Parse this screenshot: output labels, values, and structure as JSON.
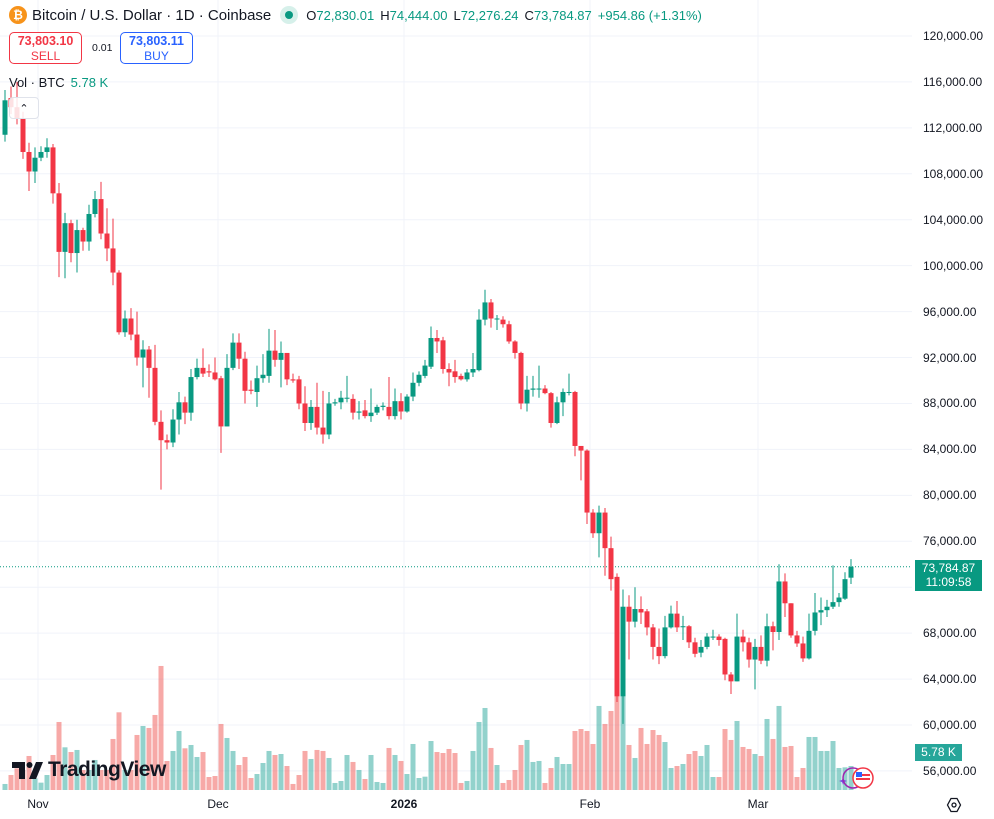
{
  "header": {
    "symbol_icon": "bitcoin-icon",
    "title": "Bitcoin / U.S. Dollar · 1D · Coinbase",
    "open_label": "O",
    "open": "72,830.01",
    "high_label": "H",
    "high": "74,444.00",
    "low_label": "L",
    "low": "72,276.24",
    "close_label": "C",
    "close": "73,784.87",
    "change": "+954.86 (+1.31%)"
  },
  "trade": {
    "sell_price": "73,803.10",
    "sell_label": "SELL",
    "spread": "0.01",
    "buy_price": "73,803.11",
    "buy_label": "BUY"
  },
  "volume_legend": {
    "label": "Vol · BTC",
    "value": "5.78 K"
  },
  "price_tag": {
    "price": "73,784.87",
    "countdown": "11:09:58"
  },
  "volume_tag": "5.78 K",
  "logo": "TradingView",
  "colors": {
    "up": "#089981",
    "down": "#F23645",
    "up_volume": "#26a69a",
    "down_volume": "#ef5350",
    "grid": "#f0f3fa",
    "bitcoin": "#f7931a"
  },
  "chart_data": {
    "type": "candlestick",
    "title": "Bitcoin / U.S. Dollar · 1D · Coinbase",
    "ylim": [
      54000,
      122000
    ],
    "y_ticks": [
      {
        "value": 120000,
        "label": "120,000.00"
      },
      {
        "value": 116000,
        "label": "116,000.00"
      },
      {
        "value": 112000,
        "label": "112,000.00"
      },
      {
        "value": 108000,
        "label": "108,000.00"
      },
      {
        "value": 104000,
        "label": "104,000.00"
      },
      {
        "value": 100000,
        "label": "100,000.00"
      },
      {
        "value": 96000,
        "label": "96,000.00"
      },
      {
        "value": 92000,
        "label": "92,000.00"
      },
      {
        "value": 88000,
        "label": "88,000.00"
      },
      {
        "value": 84000,
        "label": "84,000.00"
      },
      {
        "value": 80000,
        "label": "80,000.00"
      },
      {
        "value": 76000,
        "label": "76,000.00"
      },
      {
        "value": 68000,
        "label": "68,000.00"
      },
      {
        "value": 64000,
        "label": "64,000.00"
      },
      {
        "value": 60000,
        "label": "60,000.00"
      },
      {
        "value": 56000,
        "label": "56,000.00"
      }
    ],
    "x_ticks": [
      {
        "date": "2025-11-01",
        "label": "Nov",
        "bold": false
      },
      {
        "date": "2025-12-01",
        "label": "Dec",
        "bold": false
      },
      {
        "date": "2026-01-01",
        "label": "2026",
        "bold": true
      },
      {
        "date": "2026-02-01",
        "label": "Feb",
        "bold": false
      },
      {
        "date": "2026-03-01",
        "label": "Mar",
        "bold": false
      }
    ],
    "grid": true,
    "last_price_line": 73784.87,
    "volume_unit": "K BTC",
    "columns": [
      "date",
      "open",
      "high",
      "low",
      "close",
      "volume"
    ],
    "candles": [
      [
        "2025-10-26",
        111400,
        115300,
        110800,
        114400,
        1.45
      ],
      [
        "2025-10-27",
        114600,
        115600,
        113200,
        113800,
        3.61
      ],
      [
        "2025-10-28",
        113800,
        116000,
        112300,
        112800,
        5.22
      ],
      [
        "2025-10-29",
        112800,
        113400,
        109300,
        109900,
        4.82
      ],
      [
        "2025-10-30",
        109900,
        110700,
        106500,
        108200,
        8.19
      ],
      [
        "2025-10-31",
        108200,
        110300,
        107200,
        109400,
        2.81
      ],
      [
        "2025-11-01",
        109400,
        110400,
        109100,
        109900,
        1.77
      ],
      [
        "2025-11-02",
        109900,
        111100,
        109400,
        110300,
        3.61
      ],
      [
        "2025-11-03",
        110300,
        110600,
        105400,
        106300,
        8.43
      ],
      [
        "2025-11-04",
        106300,
        107200,
        99000,
        101200,
        16.38
      ],
      [
        "2025-11-05",
        101200,
        104600,
        98900,
        103700,
        10.28
      ],
      [
        "2025-11-06",
        103700,
        104000,
        100300,
        101100,
        9.15
      ],
      [
        "2025-11-07",
        101100,
        104000,
        99400,
        103100,
        9.64
      ],
      [
        "2025-11-08",
        103100,
        103300,
        101300,
        102100,
        4.82
      ],
      [
        "2025-11-09",
        102100,
        105300,
        101300,
        104500,
        4.82
      ],
      [
        "2025-11-10",
        104500,
        106500,
        104200,
        105800,
        7.23
      ],
      [
        "2025-11-11",
        105800,
        107300,
        102300,
        102800,
        4.82
      ],
      [
        "2025-11-12",
        102800,
        105000,
        100400,
        101500,
        4.82
      ],
      [
        "2025-11-13",
        101500,
        104100,
        98300,
        99400,
        12.29
      ],
      [
        "2025-11-14",
        99400,
        99600,
        94000,
        94200,
        18.71
      ],
      [
        "2025-11-15",
        94200,
        96100,
        93800,
        95400,
        4.82
      ],
      [
        "2025-11-16",
        95400,
        96300,
        93500,
        94000,
        4.82
      ],
      [
        "2025-11-17",
        94000,
        96000,
        91300,
        92000,
        13.25
      ],
      [
        "2025-11-18",
        92000,
        93500,
        89400,
        92700,
        15.42
      ],
      [
        "2025-11-19",
        92700,
        93000,
        88500,
        91100,
        14.94
      ],
      [
        "2025-11-20",
        91100,
        93100,
        86100,
        86400,
        18.07
      ],
      [
        "2025-11-21",
        86400,
        87400,
        80500,
        84800,
        29.87
      ],
      [
        "2025-11-22",
        84800,
        85300,
        84000,
        84600,
        6.99
      ],
      [
        "2025-11-23",
        84600,
        87500,
        84200,
        86600,
        9.4
      ],
      [
        "2025-11-24",
        86600,
        89000,
        85300,
        88100,
        14.21
      ],
      [
        "2025-11-25",
        88100,
        88600,
        86200,
        87200,
        10.04
      ],
      [
        "2025-11-26",
        87200,
        91000,
        86500,
        90300,
        10.84
      ],
      [
        "2025-11-27",
        90300,
        91900,
        90100,
        91100,
        7.95
      ],
      [
        "2025-11-28",
        91100,
        92800,
        90300,
        90600,
        9.15
      ],
      [
        "2025-11-29",
        90800,
        91400,
        90300,
        90700,
        3.13
      ],
      [
        "2025-11-30",
        90700,
        92000,
        90000,
        90100,
        3.37
      ],
      [
        "2025-12-01",
        90200,
        90400,
        83700,
        86000,
        15.9
      ],
      [
        "2025-12-02",
        86000,
        92300,
        86000,
        91100,
        12.53
      ],
      [
        "2025-12-03",
        91100,
        94100,
        90900,
        93300,
        9.4
      ],
      [
        "2025-12-04",
        93300,
        94100,
        91000,
        91900,
        6.02
      ],
      [
        "2025-12-05",
        91900,
        92500,
        88000,
        89100,
        7.95
      ],
      [
        "2025-12-06",
        89200,
        90000,
        88800,
        89100,
        2.89
      ],
      [
        "2025-12-07",
        89000,
        91300,
        87700,
        90200,
        3.85
      ],
      [
        "2025-12-08",
        90200,
        92300,
        89800,
        90500,
        6.5
      ],
      [
        "2025-12-09",
        90400,
        94500,
        89800,
        92600,
        9.4
      ],
      [
        "2025-12-10",
        92600,
        94400,
        91200,
        91800,
        8.43
      ],
      [
        "2025-12-11",
        91800,
        93400,
        89400,
        92400,
        8.67
      ],
      [
        "2025-12-12",
        92400,
        92400,
        89600,
        90100,
        5.78
      ],
      [
        "2025-12-13",
        90100,
        90600,
        89800,
        90000,
        1.45
      ],
      [
        "2025-12-14",
        90100,
        90400,
        87500,
        88000,
        3.61
      ],
      [
        "2025-12-15",
        88000,
        89500,
        85600,
        86300,
        9.4
      ],
      [
        "2025-12-16",
        86300,
        88300,
        85700,
        87700,
        7.47
      ],
      [
        "2025-12-17",
        87700,
        89800,
        85300,
        85900,
        9.64
      ],
      [
        "2025-12-18",
        85900,
        89100,
        84500,
        85300,
        9.4
      ],
      [
        "2025-12-19",
        85300,
        89000,
        84900,
        88000,
        7.71
      ],
      [
        "2025-12-20",
        88000,
        88400,
        87800,
        88100,
        1.69
      ],
      [
        "2025-12-21",
        88100,
        89100,
        87500,
        88500,
        2.17
      ],
      [
        "2025-12-22",
        88500,
        90400,
        88100,
        88500,
        8.43
      ],
      [
        "2025-12-23",
        88400,
        88800,
        86600,
        87200,
        6.75
      ],
      [
        "2025-12-24",
        87200,
        88200,
        86600,
        87300,
        4.82
      ],
      [
        "2025-12-25",
        87400,
        88300,
        86700,
        86900,
        2.65
      ],
      [
        "2025-12-26",
        86900,
        89300,
        86400,
        87200,
        8.43
      ],
      [
        "2025-12-27",
        87200,
        87900,
        87000,
        87700,
        1.93
      ],
      [
        "2025-12-28",
        87700,
        88100,
        87400,
        87800,
        1.69
      ],
      [
        "2025-12-29",
        87700,
        90300,
        86600,
        86900,
        10.12
      ],
      [
        "2025-12-30",
        86900,
        89300,
        86600,
        88200,
        8.43
      ],
      [
        "2025-12-31",
        88200,
        88900,
        86600,
        87300,
        6.99
      ],
      [
        "2026-01-01",
        87300,
        88800,
        87200,
        88600,
        3.85
      ],
      [
        "2026-01-02",
        88600,
        90700,
        88200,
        89800,
        11.08
      ],
      [
        "2026-01-03",
        89800,
        90800,
        89500,
        90500,
        2.89
      ],
      [
        "2026-01-04",
        90400,
        91800,
        90200,
        91300,
        3.21
      ],
      [
        "2026-01-05",
        91200,
        94700,
        91000,
        93700,
        11.8
      ],
      [
        "2026-01-06",
        93700,
        94400,
        92400,
        93400,
        9.15
      ],
      [
        "2026-01-07",
        93500,
        93800,
        90600,
        91000,
        8.91
      ],
      [
        "2026-01-08",
        91000,
        91500,
        89500,
        90700,
        9.88
      ],
      [
        "2026-01-09",
        90800,
        91800,
        89800,
        90300,
        8.91
      ],
      [
        "2026-01-10",
        90400,
        90600,
        90000,
        90100,
        1.69
      ],
      [
        "2026-01-11",
        90100,
        91000,
        89900,
        90700,
        2.17
      ],
      [
        "2026-01-12",
        90700,
        92400,
        90300,
        91000,
        9.4
      ],
      [
        "2026-01-13",
        90900,
        96200,
        90800,
        95300,
        16.38
      ],
      [
        "2026-01-14",
        95300,
        97900,
        94800,
        96800,
        19.75
      ],
      [
        "2026-01-15",
        96800,
        97100,
        94600,
        95400,
        10.12
      ],
      [
        "2026-01-16",
        95400,
        95700,
        94400,
        95400,
        6.02
      ],
      [
        "2026-01-17",
        95300,
        95600,
        94600,
        94900,
        1.69
      ],
      [
        "2026-01-18",
        94900,
        95200,
        93200,
        93400,
        2.41
      ],
      [
        "2026-01-19",
        93400,
        93500,
        91900,
        92400,
        4.82
      ],
      [
        "2026-01-20",
        92400,
        92500,
        87500,
        88000,
        10.84
      ],
      [
        "2026-01-21",
        88000,
        90400,
        87300,
        89200,
        12.05
      ],
      [
        "2026-01-22",
        89200,
        90400,
        88600,
        89300,
        6.75
      ],
      [
        "2026-01-23",
        89300,
        91300,
        88500,
        89300,
        6.99
      ],
      [
        "2026-01-24",
        89300,
        89600,
        88800,
        88900,
        1.69
      ],
      [
        "2026-01-25",
        88900,
        89000,
        85900,
        86300,
        5.3
      ],
      [
        "2026-01-26",
        86300,
        88600,
        86200,
        88100,
        7.95
      ],
      [
        "2026-01-27",
        88100,
        89300,
        86900,
        89000,
        6.26
      ],
      [
        "2026-01-28",
        89000,
        90600,
        88700,
        89000,
        6.26
      ],
      [
        "2026-01-29",
        89000,
        89100,
        83400,
        84300,
        14.21
      ],
      [
        "2026-01-30",
        84300,
        84300,
        81300,
        83900,
        14.69
      ],
      [
        "2026-01-31",
        83900,
        84000,
        77500,
        78500,
        14.21
      ],
      [
        "2026-02-01",
        78500,
        78800,
        76300,
        76700,
        11.08
      ],
      [
        "2026-02-02",
        76700,
        79100,
        74600,
        78500,
        20.24
      ],
      [
        "2026-02-03",
        78500,
        78900,
        73000,
        75400,
        15.9
      ],
      [
        "2026-02-04",
        75400,
        76400,
        71700,
        72700,
        19.03
      ],
      [
        "2026-02-05",
        72900,
        73200,
        62000,
        62500,
        22.89
      ],
      [
        "2026-02-06",
        62500,
        71800,
        60100,
        70300,
        22.64
      ],
      [
        "2026-02-07",
        70300,
        71300,
        65700,
        69000,
        10.84
      ],
      [
        "2026-02-08",
        69000,
        72000,
        68500,
        70100,
        7.71
      ],
      [
        "2026-02-09",
        70100,
        71200,
        68800,
        69800,
        14.94
      ],
      [
        "2026-02-10",
        69900,
        70100,
        67800,
        68500,
        11.08
      ],
      [
        "2026-02-11",
        68500,
        68800,
        65700,
        66800,
        14.45
      ],
      [
        "2026-02-12",
        66800,
        68400,
        65300,
        66000,
        13.25
      ],
      [
        "2026-02-13",
        66000,
        69500,
        65800,
        68500,
        11.56
      ],
      [
        "2026-02-14",
        68500,
        70400,
        68400,
        69700,
        5.3
      ],
      [
        "2026-02-15",
        69700,
        70800,
        68100,
        68500,
        5.78
      ],
      [
        "2026-02-16",
        68600,
        69500,
        67400,
        68600,
        6.26
      ],
      [
        "2026-02-17",
        68600,
        68700,
        66700,
        67200,
        8.67
      ],
      [
        "2026-02-18",
        67200,
        67600,
        65900,
        66200,
        9.4
      ],
      [
        "2026-02-19",
        66300,
        67400,
        65900,
        66800,
        8.19
      ],
      [
        "2026-02-20",
        66800,
        68000,
        66600,
        67700,
        10.84
      ],
      [
        "2026-02-21",
        67700,
        68300,
        67400,
        67700,
        3.13
      ],
      [
        "2026-02-22",
        67700,
        67900,
        66900,
        67400,
        3.13
      ],
      [
        "2026-02-23",
        67500,
        67600,
        63900,
        64400,
        14.69
      ],
      [
        "2026-02-24",
        64400,
        64600,
        62700,
        63800,
        12.05
      ],
      [
        "2026-02-25",
        63800,
        69700,
        63800,
        67700,
        16.62
      ],
      [
        "2026-02-26",
        67700,
        68300,
        66400,
        67200,
        10.36
      ],
      [
        "2026-02-27",
        67200,
        67600,
        65000,
        65700,
        9.88
      ],
      [
        "2026-02-28",
        65700,
        67500,
        63100,
        66800,
        8.67
      ],
      [
        "2026-03-01",
        66800,
        67800,
        65300,
        65600,
        8.19
      ],
      [
        "2026-03-02",
        65600,
        69700,
        65100,
        68600,
        17.1
      ],
      [
        "2026-03-03",
        68600,
        69000,
        66500,
        68100,
        12.29
      ],
      [
        "2026-03-04",
        68100,
        74000,
        67400,
        72500,
        20.24
      ],
      [
        "2026-03-05",
        72500,
        73200,
        69400,
        70600,
        10.36
      ],
      [
        "2026-03-06",
        70600,
        70600,
        67600,
        67800,
        10.6
      ],
      [
        "2026-03-07",
        67800,
        68200,
        66800,
        67100,
        3.13
      ],
      [
        "2026-03-08",
        67100,
        67700,
        65500,
        65800,
        5.3
      ],
      [
        "2026-03-09",
        65800,
        69700,
        65700,
        68200,
        12.77
      ],
      [
        "2026-03-10",
        68200,
        71500,
        67800,
        69800,
        12.77
      ],
      [
        "2026-03-11",
        69800,
        71100,
        68700,
        70000,
        9.4
      ],
      [
        "2026-03-12",
        70000,
        70900,
        69400,
        70300,
        9.4
      ],
      [
        "2026-03-13",
        70300,
        73900,
        70100,
        70700,
        11.8
      ],
      [
        "2026-03-14",
        70700,
        71500,
        70300,
        71100,
        5.3
      ],
      [
        "2026-03-15",
        71000,
        73300,
        70900,
        72700,
        5.46
      ],
      [
        "2026-03-16",
        72830.01,
        74444.0,
        72276.24,
        73784.87,
        5.78
      ]
    ]
  }
}
